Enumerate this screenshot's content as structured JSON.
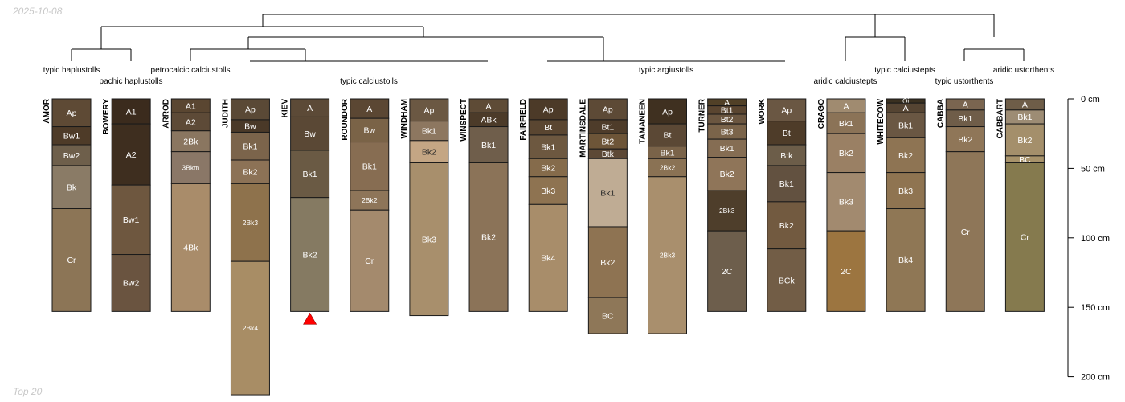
{
  "header": {
    "date": "2025-10-08"
  },
  "footer": {
    "caption": "Top 20"
  },
  "chart_data": {
    "type": "soil-profile-sketch",
    "depth_unit": "cm",
    "depth_ticks": [
      {
        "depth": 0,
        "label": "0 cm"
      },
      {
        "depth": 50,
        "label": "50 cm"
      },
      {
        "depth": 100,
        "label": "100 cm"
      },
      {
        "depth": 150,
        "label": "150 cm"
      },
      {
        "depth": 200,
        "label": "200 cm"
      }
    ],
    "taxa": [
      {
        "id": "t1",
        "label": "typic haplustolls"
      },
      {
        "id": "t2",
        "label": "pachic haplustolls"
      },
      {
        "id": "t3",
        "label": "petrocalcic calciustolls"
      },
      {
        "id": "t4",
        "label": "typic calciustolls"
      },
      {
        "id": "t5",
        "label": "typic argiustolls"
      },
      {
        "id": "t6",
        "label": "aridic calciustepts"
      },
      {
        "id": "t7",
        "label": "typic calciustepts"
      },
      {
        "id": "t8",
        "label": "typic ustorthents"
      },
      {
        "id": "t9",
        "label": "aridic ustorthents"
      }
    ],
    "profiles": [
      {
        "name": "AMOR",
        "horizons": [
          {
            "name": "Ap",
            "top": 0,
            "bottom": 20,
            "color": "#5e4a35"
          },
          {
            "name": "Bw1",
            "top": 20,
            "bottom": 33,
            "color": "#4e3b28"
          },
          {
            "name": "Bw2",
            "top": 33,
            "bottom": 48,
            "color": "#6e5f4b"
          },
          {
            "name": "Bk",
            "top": 48,
            "bottom": 79,
            "color": "#8a7b66"
          },
          {
            "name": "Cr",
            "top": 79,
            "bottom": 153,
            "color": "#8c7556"
          }
        ]
      },
      {
        "name": "BOWERY",
        "horizons": [
          {
            "name": "A1",
            "top": 0,
            "bottom": 18,
            "color": "#3b2b1d"
          },
          {
            "name": "A2",
            "top": 18,
            "bottom": 62,
            "color": "#3e2e1f"
          },
          {
            "name": "Bw1",
            "top": 62,
            "bottom": 112,
            "color": "#6e573f"
          },
          {
            "name": "Bw2",
            "top": 112,
            "bottom": 153,
            "color": "#6a5440"
          }
        ]
      },
      {
        "name": "ARROD",
        "horizons": [
          {
            "name": "A1",
            "top": 0,
            "bottom": 10,
            "color": "#5a4631"
          },
          {
            "name": "A2",
            "top": 10,
            "bottom": 23,
            "color": "#5d4a37"
          },
          {
            "name": "2Bk",
            "top": 23,
            "bottom": 38,
            "color": "#8a7660"
          },
          {
            "name": "3Bkm",
            "top": 38,
            "bottom": 61,
            "color": "#8a7767"
          },
          {
            "name": "4Bk",
            "top": 61,
            "bottom": 153,
            "color": "#a98c6a"
          }
        ]
      },
      {
        "name": "JUDITH",
        "horizons": [
          {
            "name": "Ap",
            "top": 0,
            "bottom": 15,
            "color": "#5a4936"
          },
          {
            "name": "Bw",
            "top": 15,
            "bottom": 24,
            "color": "#4a3928"
          },
          {
            "name": "Bk1",
            "top": 24,
            "bottom": 44,
            "color": "#7b644b"
          },
          {
            "name": "Bk2",
            "top": 44,
            "bottom": 61,
            "color": "#8c7256"
          },
          {
            "name": "2Bk3",
            "top": 61,
            "bottom": 117,
            "color": "#8e724c"
          },
          {
            "name": "2Bk4",
            "top": 117,
            "bottom": 213,
            "color": "#a88d65"
          }
        ]
      },
      {
        "name": "KIEV",
        "mark": true,
        "horizons": [
          {
            "name": "A",
            "top": 0,
            "bottom": 13,
            "color": "#5c4a37"
          },
          {
            "name": "Bw",
            "top": 13,
            "bottom": 37,
            "color": "#5a4835"
          },
          {
            "name": "Bk1",
            "top": 37,
            "bottom": 71,
            "color": "#6a5a44"
          },
          {
            "name": "Bk2",
            "top": 71,
            "bottom": 153,
            "color": "#857a62"
          }
        ]
      },
      {
        "name": "ROUNDOR",
        "horizons": [
          {
            "name": "A",
            "top": 0,
            "bottom": 14,
            "color": "#5b4733"
          },
          {
            "name": "Bw",
            "top": 14,
            "bottom": 31,
            "color": "#7a6347"
          },
          {
            "name": "Bk1",
            "top": 31,
            "bottom": 66,
            "color": "#876d52"
          },
          {
            "name": "2Bk2",
            "top": 66,
            "bottom": 80,
            "color": "#8e7559"
          },
          {
            "name": "Cr",
            "top": 80,
            "bottom": 153,
            "color": "#a48a6d"
          }
        ]
      },
      {
        "name": "WINDHAM",
        "horizons": [
          {
            "name": "Ap",
            "top": 0,
            "bottom": 16,
            "color": "#6b5843"
          },
          {
            "name": "Bk1",
            "top": 16,
            "bottom": 30,
            "color": "#8d7760"
          },
          {
            "name": "Bk2",
            "top": 30,
            "bottom": 46,
            "color": "#c4a684"
          },
          {
            "name": "Bk3",
            "top": 46,
            "bottom": 156,
            "color": "#a88f6c"
          }
        ]
      },
      {
        "name": "WINSPECT",
        "horizons": [
          {
            "name": "A",
            "top": 0,
            "bottom": 10,
            "color": "#5e4b36"
          },
          {
            "name": "ABk",
            "top": 10,
            "bottom": 20,
            "color": "#4c3b29"
          },
          {
            "name": "Bk1",
            "top": 20,
            "bottom": 46,
            "color": "#6f5e4b"
          },
          {
            "name": "Bk2",
            "top": 46,
            "bottom": 153,
            "color": "#8b7358"
          }
        ]
      },
      {
        "name": "FAIRFIELD",
        "horizons": [
          {
            "name": "Ap",
            "top": 0,
            "bottom": 15,
            "color": "#4c3a28"
          },
          {
            "name": "Bt",
            "top": 15,
            "bottom": 26,
            "color": "#5a4631"
          },
          {
            "name": "Bk1",
            "top": 26,
            "bottom": 43,
            "color": "#6d5840"
          },
          {
            "name": "Bk2",
            "top": 43,
            "bottom": 56,
            "color": "#856b4b"
          },
          {
            "name": "Bk3",
            "top": 56,
            "bottom": 76,
            "color": "#8e7351"
          },
          {
            "name": "Bk4",
            "top": 76,
            "bottom": 153,
            "color": "#a88d6a"
          }
        ]
      },
      {
        "name": "MARTINSDALE",
        "horizons": [
          {
            "name": "Ap",
            "top": 0,
            "bottom": 15,
            "color": "#5d4a36"
          },
          {
            "name": "Bt1",
            "top": 15,
            "bottom": 25,
            "color": "#4e3c2a"
          },
          {
            "name": "Bt2",
            "top": 25,
            "bottom": 36,
            "color": "#6d5538"
          },
          {
            "name": "Btk",
            "top": 36,
            "bottom": 43,
            "color": "#5d4936"
          },
          {
            "name": "Bk1",
            "top": 43,
            "bottom": 92,
            "color": "#bfac94"
          },
          {
            "name": "Bk2",
            "top": 92,
            "bottom": 143,
            "color": "#8e7352"
          },
          {
            "name": "BC",
            "top": 143,
            "bottom": 169,
            "color": "#8e7758"
          }
        ]
      },
      {
        "name": "TAMANEEN",
        "horizons": [
          {
            "name": "Ap",
            "top": 0,
            "bottom": 18,
            "color": "#3f3020"
          },
          {
            "name": "Bt",
            "top": 18,
            "bottom": 34,
            "color": "#5b4835"
          },
          {
            "name": "Bk1",
            "top": 34,
            "bottom": 43,
            "color": "#7a6349"
          },
          {
            "name": "2Bk2",
            "top": 43,
            "bottom": 56,
            "color": "#8a7254"
          },
          {
            "name": "2Bk3",
            "top": 56,
            "bottom": 169,
            "color": "#a98f6d"
          }
        ]
      },
      {
        "name": "TURNER",
        "horizons": [
          {
            "name": "A",
            "top": 0,
            "bottom": 5,
            "color": "#514027"
          },
          {
            "name": "Bt1",
            "top": 5,
            "bottom": 11,
            "color": "#5a4530"
          },
          {
            "name": "Bt2",
            "top": 11,
            "bottom": 18,
            "color": "#6b5640"
          },
          {
            "name": "Bt3",
            "top": 18,
            "bottom": 29,
            "color": "#7b644a"
          },
          {
            "name": "Bk1",
            "top": 29,
            "bottom": 42,
            "color": "#856d53"
          },
          {
            "name": "Bk2",
            "top": 42,
            "bottom": 66,
            "color": "#8f7559"
          },
          {
            "name": "2Bk3",
            "top": 66,
            "bottom": 95,
            "color": "#4e3e2b"
          },
          {
            "name": "2C",
            "top": 95,
            "bottom": 153,
            "color": "#6d5e4c"
          }
        ]
      },
      {
        "name": "WORK",
        "horizons": [
          {
            "name": "Ap",
            "top": 0,
            "bottom": 16,
            "color": "#6a5743"
          },
          {
            "name": "Bt",
            "top": 16,
            "bottom": 33,
            "color": "#4e3c29"
          },
          {
            "name": "Btk",
            "top": 33,
            "bottom": 48,
            "color": "#6c5d49"
          },
          {
            "name": "Bk1",
            "top": 48,
            "bottom": 74,
            "color": "#625140"
          },
          {
            "name": "Bk2",
            "top": 74,
            "bottom": 108,
            "color": "#725a40"
          },
          {
            "name": "BCk",
            "top": 108,
            "bottom": 153,
            "color": "#725d46"
          }
        ]
      },
      {
        "name": "CRAGO",
        "horizons": [
          {
            "name": "A",
            "top": 0,
            "bottom": 10,
            "color": "#a08b70"
          },
          {
            "name": "Bk1",
            "top": 10,
            "bottom": 25,
            "color": "#8b7357"
          },
          {
            "name": "Bk2",
            "top": 25,
            "bottom": 53,
            "color": "#9a8064"
          },
          {
            "name": "Bk3",
            "top": 53,
            "bottom": 95,
            "color": "#a28a6f"
          },
          {
            "name": "2C",
            "top": 95,
            "bottom": 153,
            "color": "#9c7540"
          }
        ]
      },
      {
        "name": "WHITECOW",
        "horizons": [
          {
            "name": "Oi",
            "top": 0,
            "bottom": 3,
            "color": "#3a3020"
          },
          {
            "name": "A",
            "top": 3,
            "bottom": 10,
            "color": "#554432"
          },
          {
            "name": "Bk1",
            "top": 10,
            "bottom": 28,
            "color": "#6a5743"
          },
          {
            "name": "Bk2",
            "top": 28,
            "bottom": 53,
            "color": "#8e7453"
          },
          {
            "name": "Bk3",
            "top": 53,
            "bottom": 79,
            "color": "#8f7451"
          },
          {
            "name": "Bk4",
            "top": 79,
            "bottom": 153,
            "color": "#8f7755"
          }
        ]
      },
      {
        "name": "CABBA",
        "horizons": [
          {
            "name": "A",
            "top": 0,
            "bottom": 8,
            "color": "#7a6550"
          },
          {
            "name": "Bk1",
            "top": 8,
            "bottom": 20,
            "color": "#6f5d49"
          },
          {
            "name": "Bk2",
            "top": 20,
            "bottom": 38,
            "color": "#8f7658"
          },
          {
            "name": "Cr",
            "top": 38,
            "bottom": 153,
            "color": "#8e7658"
          }
        ]
      },
      {
        "name": "CABBART",
        "horizons": [
          {
            "name": "A",
            "top": 0,
            "bottom": 8,
            "color": "#6e5d48"
          },
          {
            "name": "Bk1",
            "top": 8,
            "bottom": 18,
            "color": "#9d8c74"
          },
          {
            "name": "Bk2",
            "top": 18,
            "bottom": 41,
            "color": "#a48f6b"
          },
          {
            "name": "BC",
            "top": 41,
            "bottom": 46,
            "color": "#a8936b"
          },
          {
            "name": "Cr",
            "top": 46,
            "bottom": 153,
            "color": "#857a4e"
          }
        ]
      }
    ]
  }
}
